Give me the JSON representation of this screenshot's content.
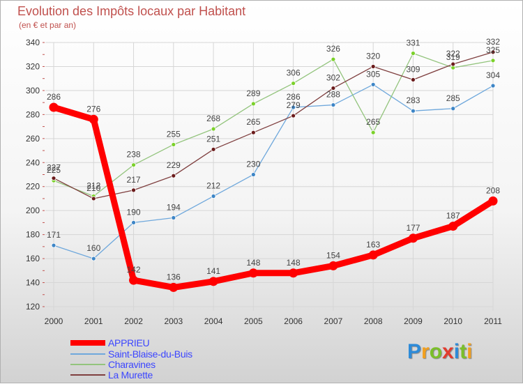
{
  "title": "Evolution des Impôts locaux par Habitant",
  "subtitle": "(en € et par an)",
  "logo": {
    "letters": [
      "P",
      "r",
      "o",
      "x",
      "i",
      "t",
      "i"
    ],
    "colors": [
      "#2e8bd8",
      "#f2a01f",
      "#7bbf2a",
      "#e23b2e",
      "#2e8bd8",
      "#7bbf2a",
      "#f2a01f"
    ]
  },
  "chart_data": {
    "type": "line",
    "title": "Evolution des Impôts locaux par Habitant",
    "subtitle": "(en € et par an)",
    "x": [
      "2000",
      "2001",
      "2002",
      "2003",
      "2004",
      "2005",
      "2006",
      "2007",
      "2008",
      "2009",
      "2010",
      "2011"
    ],
    "ylim": [
      120,
      340
    ],
    "yticks": [
      "120",
      "140",
      "160",
      "180",
      "200",
      "220",
      "240",
      "260",
      "280",
      "300",
      "320",
      "340"
    ],
    "grid": true,
    "legend_position": "bottom-left",
    "series": [
      {
        "name": "APPRIEU",
        "color": "#ff0000",
        "marker": "#ff0000",
        "bold": true,
        "values": [
          286,
          276,
          142,
          136,
          141,
          148,
          148,
          154,
          163,
          177,
          187,
          208
        ]
      },
      {
        "name": "Saint-Blaise-du-Buis",
        "color": "#6fa8dc",
        "marker": "#3d85c6",
        "values": [
          171,
          160,
          190,
          194,
          212,
          230,
          286,
          288,
          305,
          283,
          285,
          304
        ]
      },
      {
        "name": "Charavines",
        "color": "#93c47d",
        "marker": "#7bd12a",
        "values": [
          225,
          212,
          238,
          255,
          268,
          289,
          306,
          326,
          265,
          331,
          319,
          325
        ]
      },
      {
        "name": "La Murette",
        "color": "#7f3f3f",
        "marker": "#6b1b1b",
        "values": [
          227,
          210,
          217,
          229,
          251,
          265,
          279,
          302,
          320,
          309,
          322,
          332
        ]
      }
    ]
  }
}
